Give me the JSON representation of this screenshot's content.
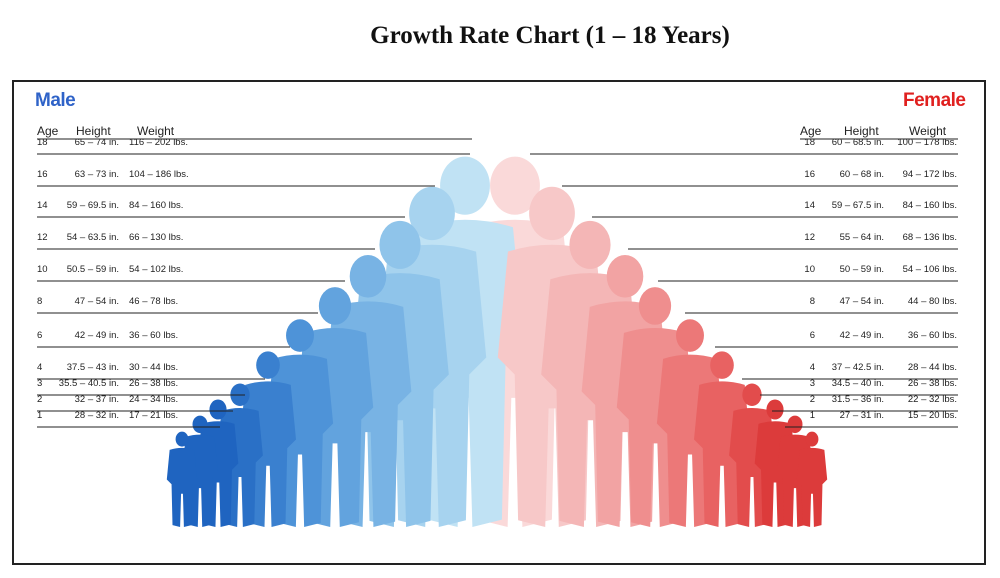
{
  "title": "Growth Rate Chart (1 – 18 Years)",
  "chart_data": {
    "type": "table",
    "male": {
      "label": "Male",
      "color": "#2f63c8",
      "columns": [
        "Age",
        "Height",
        "Weight"
      ],
      "rows": [
        {
          "age": "18",
          "height": "65 – 74 in.",
          "weight": "116 – 202 lbs."
        },
        {
          "age": "16",
          "height": "63 – 73 in.",
          "weight": "104 – 186 lbs."
        },
        {
          "age": "14",
          "height": "59 – 69.5 in.",
          "weight": "84 – 160 lbs."
        },
        {
          "age": "12",
          "height": "54 – 63.5 in.",
          "weight": "66 – 130 lbs."
        },
        {
          "age": "10",
          "height": "50.5 – 59 in.",
          "weight": "54 – 102 lbs."
        },
        {
          "age": "8",
          "height": "47 – 54 in.",
          "weight": "46 – 78 lbs."
        },
        {
          "age": "6",
          "height": "42 – 49 in.",
          "weight": "36 – 60 lbs."
        },
        {
          "age": "4",
          "height": "37.5 – 43 in.",
          "weight": "30 – 44 lbs."
        },
        {
          "age": "3",
          "height": "35.5 – 40.5 in.",
          "weight": "26 – 38 lbs."
        },
        {
          "age": "2",
          "height": "32 – 37 in.",
          "weight": "24 – 34 lbs."
        },
        {
          "age": "1",
          "height": "28 – 32 in.",
          "weight": "17 – 21 lbs."
        }
      ]
    },
    "female": {
      "label": "Female",
      "color": "#e0201f",
      "columns": [
        "Age",
        "Height",
        "Weight"
      ],
      "rows": [
        {
          "age": "18",
          "height": "60 – 68.5 in.",
          "weight": "100 – 178 lbs."
        },
        {
          "age": "16",
          "height": "60 – 68 in.",
          "weight": "94 – 172 lbs."
        },
        {
          "age": "14",
          "height": "59 – 67.5 in.",
          "weight": "84 – 160 lbs."
        },
        {
          "age": "12",
          "height": "55 – 64 in.",
          "weight": "68 – 136 lbs."
        },
        {
          "age": "10",
          "height": "50 – 59 in.",
          "weight": "54 – 106 lbs."
        },
        {
          "age": "8",
          "height": "47 – 54 in.",
          "weight": "44 – 80 lbs."
        },
        {
          "age": "6",
          "height": "42 – 49 in.",
          "weight": "36 – 60 lbs."
        },
        {
          "age": "4",
          "height": "37 – 42.5 in.",
          "weight": "28 – 44 lbs."
        },
        {
          "age": "3",
          "height": "34.5 – 40 in.",
          "weight": "26 – 38 lbs."
        },
        {
          "age": "2",
          "height": "31.5 – 36 in.",
          "weight": "22 – 32 lbs."
        },
        {
          "age": "1",
          "height": "27 – 31 in.",
          "weight": "15 – 20 lbs."
        }
      ]
    }
  },
  "figures": {
    "male_colors": [
      "#1f64c0",
      "#2a70c6",
      "#3a80cf",
      "#4e93d8",
      "#62a3de",
      "#78b3e4",
      "#8fc4ea",
      "#a7d3ef",
      "#c0e2f4"
    ],
    "female_colors": [
      "#dc3b3b",
      "#e24c4c",
      "#e86262",
      "#ec7878",
      "#ef8e8e",
      "#f2a3a3",
      "#f4b6b6",
      "#f7c8c8",
      "#fad9d9"
    ]
  }
}
